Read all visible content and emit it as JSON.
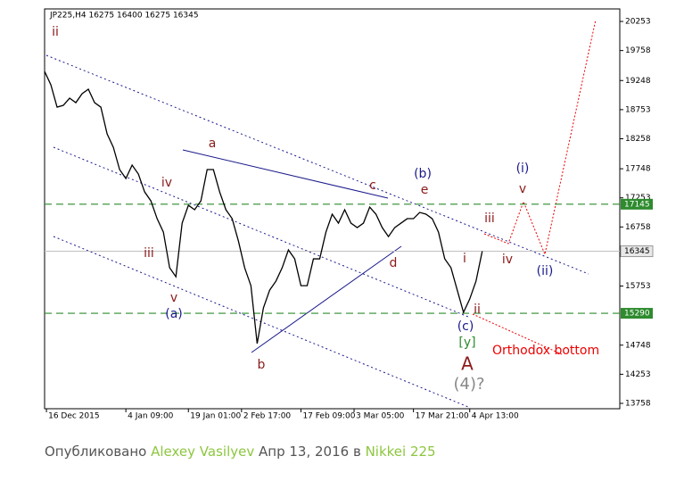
{
  "chart_data": {
    "type": "line",
    "title": "JP225,H4  16275 16400 16275 16345",
    "color": "#000000",
    "values": [
      19403,
      19176,
      18796,
      18827,
      18948,
      18872,
      19024,
      19100,
      18872,
      18796,
      18341,
      18113,
      17734,
      17582,
      17810,
      17658,
      17354,
      17202,
      16899,
      16671,
      16064,
      15912,
      16823,
      17126,
      17051,
      17202,
      17734,
      17734,
      17354,
      17051,
      16899,
      16519,
      16064,
      15760,
      14774,
      15381,
      15684,
      15836,
      16064,
      16367,
      16216,
      15760,
      15760,
      16216,
      16216,
      16671,
      16975,
      16823,
      17051,
      16823,
      16747,
      16823,
      17096,
      16975,
      16747,
      16595,
      16747,
      16823,
      16899,
      16899,
      17005,
      16975,
      16899,
      16671,
      16216,
      16064,
      15684,
      15305,
      15533,
      15836,
      16345
    ],
    "xlim": [
      0,
      92
    ],
    "xticks": [
      {
        "value": 0.3,
        "label": "16 Dec 2015"
      },
      {
        "value": 13,
        "label": "4 Jan 09:00"
      },
      {
        "value": 23,
        "label": "19 Jan 01:00"
      },
      {
        "value": 31.5,
        "label": "2 Feb 17:00"
      },
      {
        "value": 41,
        "label": "17 Feb 09:00"
      },
      {
        "value": 49.5,
        "label": "3 Mar 05:00"
      },
      {
        "value": 59,
        "label": "17 Mar 21:00"
      },
      {
        "value": 68,
        "label": "4 Apr 13:00"
      }
    ],
    "ylim": [
      13667,
      20466
    ],
    "yticks": [
      13758,
      14253,
      14748,
      15753,
      16758,
      17253,
      17748,
      18258,
      18753,
      19248,
      19758,
      20253
    ],
    "levels": [
      {
        "value": 17145,
        "color": "#2e8b2e"
      },
      {
        "value": 15290,
        "color": "#2e8b2e"
      }
    ],
    "current": {
      "value": 16345,
      "color": "#c0c0c0"
    },
    "annotations": [
      "ii",
      "a",
      "iv",
      "iii",
      "v",
      "(a)",
      "b",
      "c",
      "(b)",
      "e",
      "d",
      "iii",
      "i",
      "iv",
      "ii",
      "(c)",
      "[y]",
      "A",
      "(4)?",
      "(i)",
      "v",
      "(ii)",
      "Orthodox bottom"
    ]
  },
  "footer": {
    "published": "Опубликовано",
    "author": "Alexey Vasilyev",
    "date": "Апр 13, 2016 в",
    "instrument": "Nikkei 225"
  }
}
